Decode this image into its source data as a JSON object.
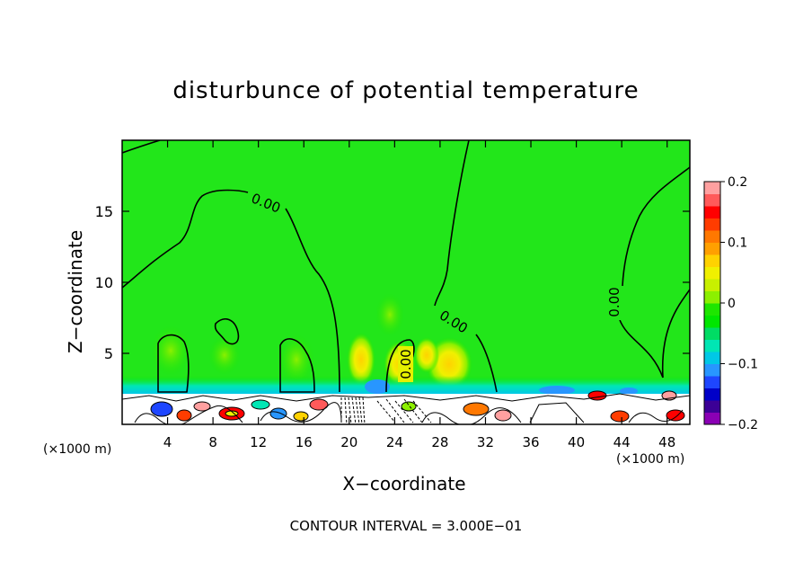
{
  "chart_data": {
    "type": "heatmap",
    "title": "disturbunce of potential temperature",
    "xlabel": "X−coordinate",
    "ylabel": "Z−coordinate",
    "x_unit": "(×1000 m)",
    "xlim": [
      0,
      50
    ],
    "ylim": [
      0,
      20
    ],
    "x_ticks": [
      "4",
      "8",
      "12",
      "16",
      "20",
      "24",
      "28",
      "32",
      "36",
      "40",
      "44",
      "48"
    ],
    "x_tick_values": [
      4,
      8,
      12,
      16,
      20,
      24,
      28,
      32,
      36,
      40,
      44,
      48
    ],
    "y_ticks": [
      "5",
      "10",
      "15"
    ],
    "y_tick_values": [
      5,
      10,
      15
    ],
    "colorbar": {
      "range": [
        -0.2,
        0.2
      ],
      "tick_labels": [
        "0.2",
        "0.1",
        "0",
        "−0.1",
        "−0.2"
      ],
      "tick_values": [
        0.2,
        0.1,
        0,
        -0.1,
        -0.2
      ],
      "colors": [
        "#8a00b4",
        "#3c0096",
        "#0000c8",
        "#1e46ff",
        "#2896ff",
        "#00c8e6",
        "#00e6b4",
        "#00dc64",
        "#00e600",
        "#1ee600",
        "#8cf000",
        "#c8f000",
        "#f0f000",
        "#ffd200",
        "#ffa000",
        "#ff7800",
        "#ff3c00",
        "#ff0000",
        "#ff5a5a",
        "#ffa0a0"
      ]
    },
    "contour_labels": [
      "0.00",
      "0.00",
      "0.00",
      "0.00"
    ],
    "background_value": 0,
    "footer": "CONTOUR INTERVAL = 3.000E−01"
  }
}
